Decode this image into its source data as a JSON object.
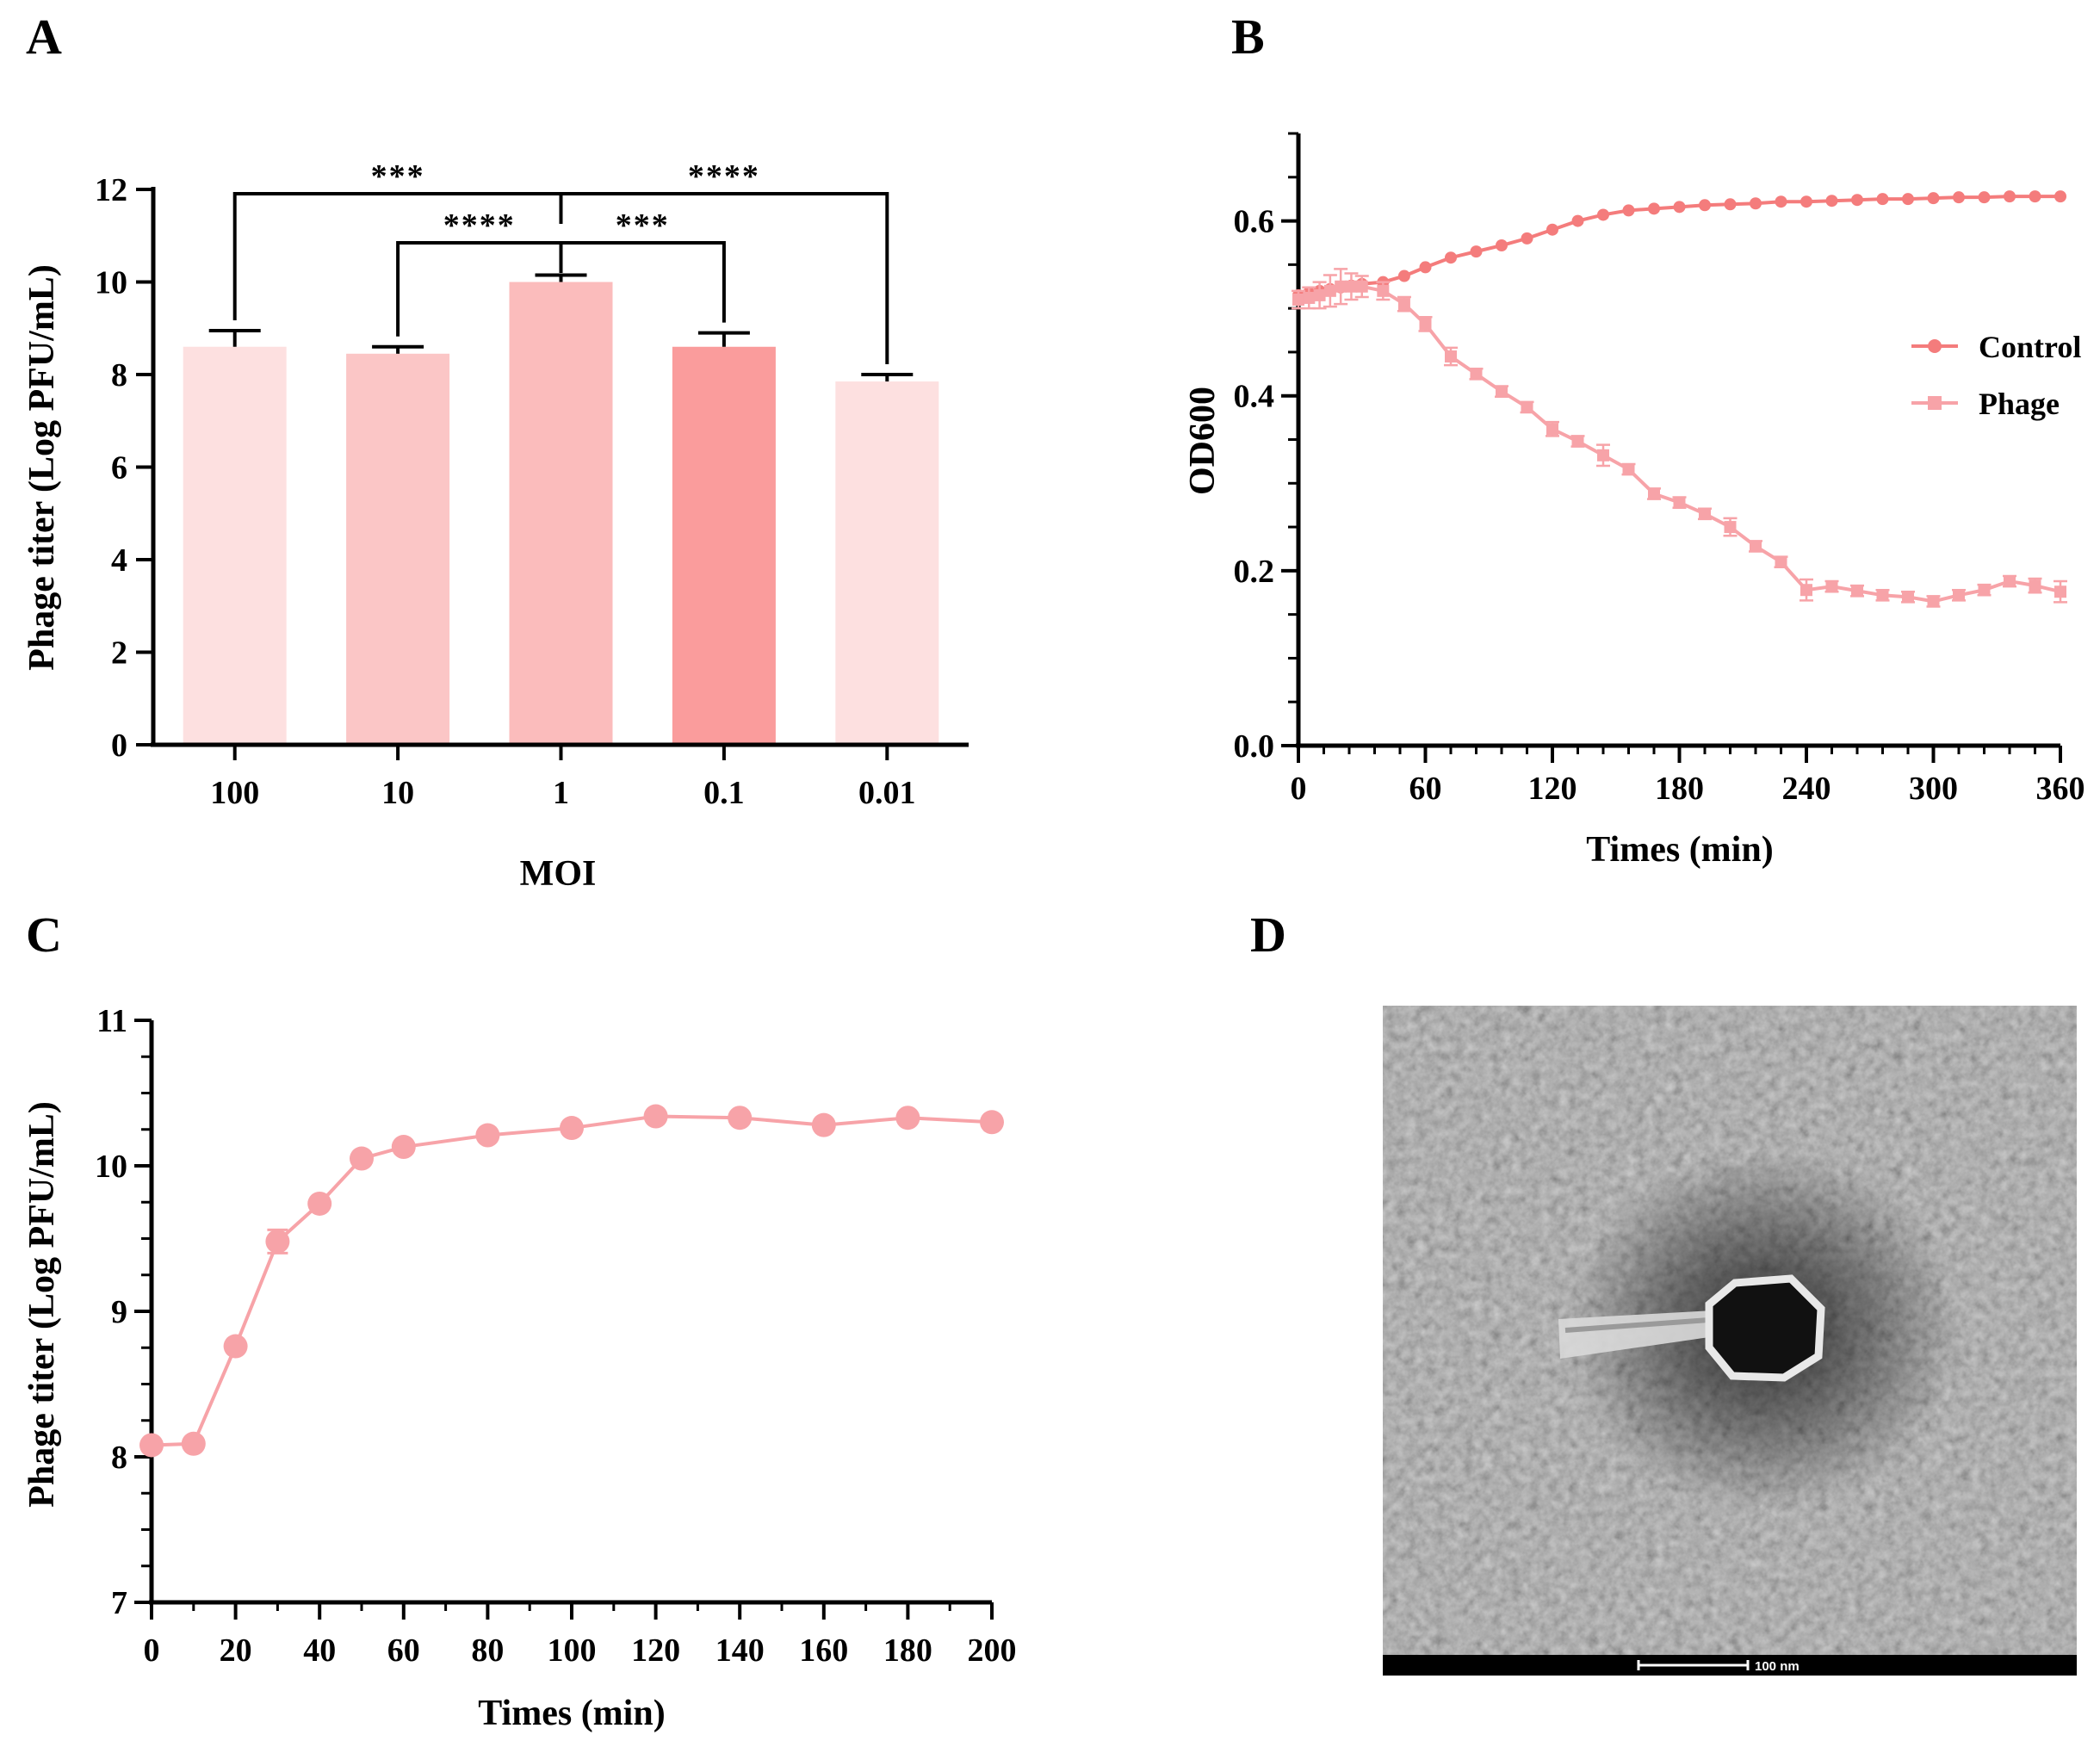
{
  "panel_labels": {
    "a": "A",
    "b": "B",
    "c": "C",
    "d": "D"
  },
  "chart_data": [
    {
      "panel": "A",
      "type": "bar",
      "xlabel": "MOI",
      "ylabel": "Phage titer (Log PFU/mL)",
      "ylim": [
        0,
        12
      ],
      "yticks": [
        0,
        2,
        4,
        6,
        8,
        10,
        12
      ],
      "categories": [
        "100",
        "10",
        "1",
        "0.1",
        "0.01"
      ],
      "values": [
        8.6,
        8.45,
        10.0,
        8.6,
        7.85
      ],
      "errors": [
        0.35,
        0.15,
        0.15,
        0.3,
        0.15
      ],
      "bar_colors": [
        "#fde0e0",
        "#fbc6c6",
        "#fbbcbc",
        "#fa9c9c",
        "#fde0e0"
      ],
      "significance": [
        {
          "from": 0,
          "to": 4,
          "left_label": "***",
          "right_label": "****"
        },
        {
          "from": 1,
          "to": 3,
          "left_label": "****",
          "right_label": "***"
        }
      ],
      "grid": false
    },
    {
      "panel": "B",
      "type": "line",
      "xlabel": "Times (min)",
      "ylabel": "OD600",
      "xlim": [
        0,
        360
      ],
      "ylim": [
        0,
        0.7
      ],
      "xticks": [
        0,
        60,
        120,
        180,
        240,
        300,
        360
      ],
      "yticks": [
        "0.0",
        "0.2",
        "0.4",
        "0.6"
      ],
      "legend_position": "right",
      "series": [
        {
          "name": "Control",
          "marker": "circle",
          "color": "#f47c7c",
          "x": [
            0,
            5,
            10,
            15,
            20,
            25,
            30,
            40,
            50,
            60,
            72,
            84,
            96,
            108,
            120,
            132,
            144,
            156,
            168,
            180,
            192,
            204,
            216,
            228,
            240,
            252,
            264,
            276,
            288,
            300,
            312,
            324,
            336,
            348,
            360
          ],
          "y": [
            0.515,
            0.518,
            0.52,
            0.522,
            0.524,
            0.526,
            0.528,
            0.53,
            0.537,
            0.547,
            0.558,
            0.565,
            0.572,
            0.58,
            0.59,
            0.6,
            0.607,
            0.612,
            0.614,
            0.616,
            0.618,
            0.619,
            0.62,
            0.622,
            0.622,
            0.623,
            0.624,
            0.625,
            0.625,
            0.626,
            0.627,
            0.627,
            0.628,
            0.628,
            0.628
          ]
        },
        {
          "name": "Phage",
          "marker": "square",
          "color": "#f7a3a8",
          "x": [
            0,
            5,
            10,
            15,
            20,
            25,
            30,
            40,
            50,
            60,
            72,
            84,
            96,
            108,
            120,
            132,
            144,
            156,
            168,
            180,
            192,
            204,
            216,
            228,
            240,
            252,
            264,
            276,
            288,
            300,
            312,
            324,
            336,
            348,
            360
          ],
          "y": [
            0.51,
            0.512,
            0.515,
            0.52,
            0.525,
            0.525,
            0.525,
            0.52,
            0.505,
            0.482,
            0.445,
            0.425,
            0.405,
            0.387,
            0.362,
            0.348,
            0.332,
            0.316,
            0.288,
            0.278,
            0.265,
            0.25,
            0.228,
            0.21,
            0.178,
            0.182,
            0.177,
            0.172,
            0.17,
            0.165,
            0.172,
            0.178,
            0.188,
            0.183,
            0.176
          ],
          "errors": [
            0.01,
            0.012,
            0.015,
            0.018,
            0.02,
            0.015,
            0.012,
            0.01,
            0.008,
            0.008,
            0.01,
            0.006,
            0.006,
            0.006,
            0.008,
            0.006,
            0.012,
            0.006,
            0.006,
            0.006,
            0.006,
            0.01,
            0.006,
            0.006,
            0.012,
            0.006,
            0.006,
            0.006,
            0.006,
            0.006,
            0.006,
            0.006,
            0.006,
            0.008,
            0.012
          ]
        }
      ],
      "grid": false
    },
    {
      "panel": "C",
      "type": "line",
      "xlabel": "Times (min)",
      "ylabel": "Phage titer (Log PFU/mL)",
      "xlim": [
        0,
        200
      ],
      "ylim": [
        7,
        11
      ],
      "xticks": [
        0,
        20,
        40,
        60,
        80,
        100,
        120,
        140,
        160,
        180,
        200
      ],
      "yticks": [
        7,
        8,
        9,
        10,
        11
      ],
      "series": [
        {
          "marker": "circle",
          "color": "#f7a3a8",
          "x": [
            0,
            10,
            20,
            30,
            40,
            50,
            60,
            80,
            100,
            120,
            140,
            160,
            180,
            200
          ],
          "y": [
            8.08,
            8.09,
            8.76,
            9.48,
            9.74,
            10.05,
            10.13,
            10.21,
            10.26,
            10.34,
            10.33,
            10.28,
            10.33,
            10.3
          ],
          "errors": [
            0,
            0,
            0,
            0.08,
            0.03,
            0.02,
            0.02,
            0.02,
            0.02,
            0.02,
            0.02,
            0.02,
            0.02,
            0.02
          ]
        }
      ],
      "grid": false
    }
  ],
  "micrograph": {
    "scale_bar_label": "100 nm",
    "bg_color": "#8a8a8a"
  }
}
